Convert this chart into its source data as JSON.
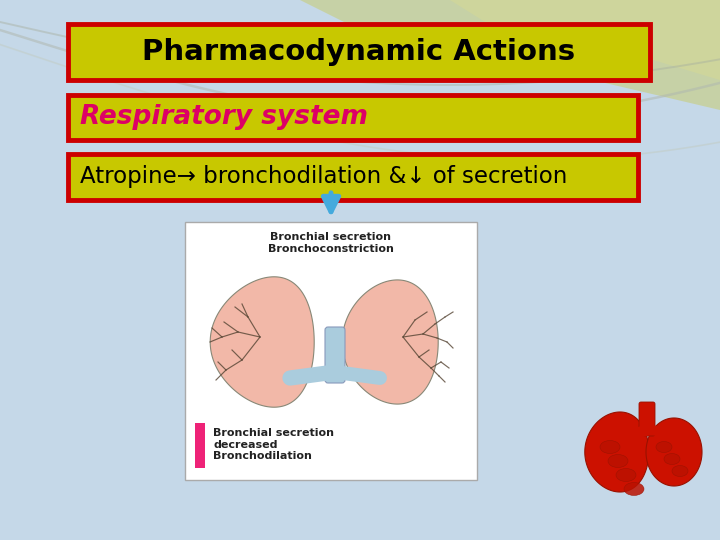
{
  "title_text": "Pharmacodynamic Actions",
  "title_bg": "#c8c800",
  "title_border": "#cc0000",
  "title_text_color": "#000000",
  "subtitle_text": "Respiratory system",
  "subtitle_bg": "#c8c800",
  "subtitle_border": "#cc0000",
  "subtitle_text_color": "#dd0066",
  "body_text": "Atropine→ bronchodilation &↓ of secretion",
  "body_bg": "#c8c800",
  "body_border": "#cc0000",
  "body_text_color": "#000000",
  "background_color": "#c5d8e8",
  "figsize": [
    7.2,
    5.4
  ],
  "dpi": 100
}
